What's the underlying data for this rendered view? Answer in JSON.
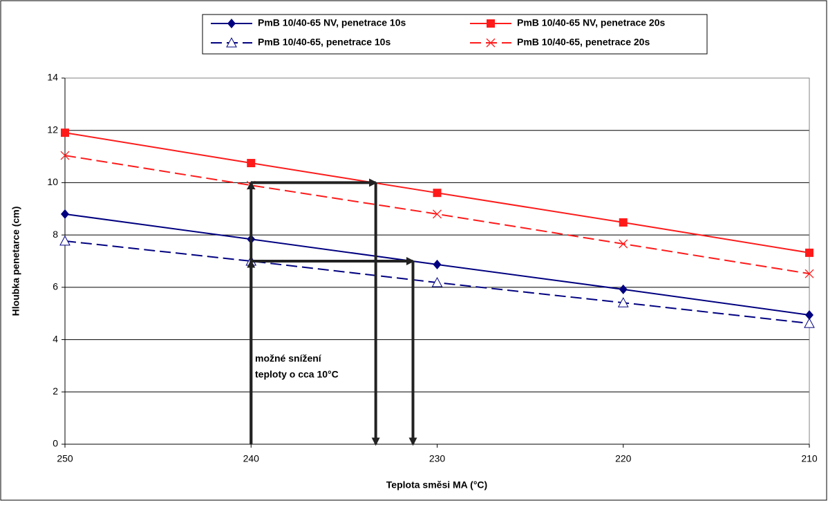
{
  "chart_data": {
    "type": "line",
    "xlabel": "Teplota směsi MA (°C)",
    "ylabel": "Hloubka penetarce (cm)",
    "x": [
      250,
      240,
      230,
      220,
      210
    ],
    "xlim": [
      250,
      210
    ],
    "xticks": [
      250,
      240,
      230,
      220,
      210
    ],
    "ylim": [
      0,
      14
    ],
    "yticks": [
      0,
      2,
      4,
      6,
      8,
      10,
      12,
      14
    ],
    "grid": true,
    "legend": "top",
    "series": [
      {
        "name": "PmB 10/40-65 NV, penetrace 10s",
        "color": "#000080",
        "marker": "diamond",
        "dashed": false,
        "values": [
          8.8,
          7.84,
          6.87,
          5.92,
          4.94
        ]
      },
      {
        "name": "PmB 10/40-65 NV, penetrace 20s",
        "color": "#ff1a1a",
        "marker": "square",
        "dashed": false,
        "values": [
          11.91,
          10.75,
          9.61,
          8.48,
          7.32
        ]
      },
      {
        "name": "PmB 10/40-65, penetrace 10s",
        "color": "#000080",
        "marker": "triangle",
        "dashed": true,
        "values": [
          7.77,
          7.0,
          6.18,
          5.41,
          4.62
        ]
      },
      {
        "name": "PmB 10/40-65, penetrace 20s",
        "color": "#ff1a1a",
        "marker": "x",
        "dashed": true,
        "values": [
          11.04,
          9.9,
          8.8,
          7.66,
          6.52
        ]
      }
    ],
    "arrows": [
      {
        "x": [
          240,
          240,
          233.3,
          233.3
        ],
        "y": [
          0,
          10,
          10,
          0
        ]
      },
      {
        "x": [
          240,
          240,
          231.3,
          231.3
        ],
        "y": [
          0,
          7,
          7,
          0
        ]
      }
    ],
    "annotation": [
      "možné snížení",
      "teploty o cca 10°C"
    ]
  }
}
